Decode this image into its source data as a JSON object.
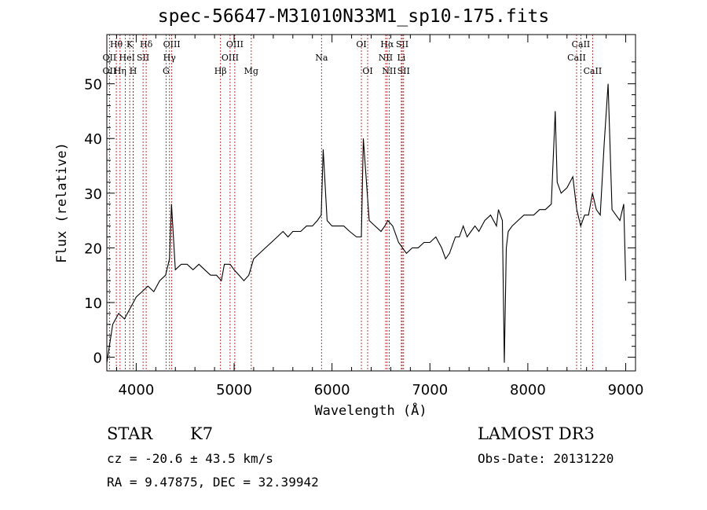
{
  "chart_data": {
    "type": "line",
    "title": "spec-56647-M31010N33M1_sp10-175.fits",
    "xlabel": "Wavelength (Å)",
    "ylabel": "Flux (relative)",
    "xlim": [
      3700,
      9100
    ],
    "ylim": [
      -2.5,
      59
    ],
    "xticks": [
      4000,
      5000,
      6000,
      7000,
      8000,
      9000
    ],
    "yticks": [
      0,
      10,
      20,
      30,
      40,
      50
    ],
    "series": [
      {
        "name": "flux",
        "x": [
          3700,
          3760,
          3820,
          3880,
          3940,
          4000,
          4060,
          4120,
          4180,
          4240,
          4300,
          4340,
          4360,
          4400,
          4460,
          4520,
          4580,
          4640,
          4700,
          4760,
          4820,
          4870,
          4900,
          4960,
          5000,
          5050,
          5100,
          5150,
          5200,
          5260,
          5320,
          5380,
          5440,
          5500,
          5550,
          5600,
          5620,
          5680,
          5740,
          5800,
          5850,
          5890,
          5910,
          5950,
          6000,
          6060,
          6120,
          6180,
          6250,
          6300,
          6320,
          6380,
          6440,
          6500,
          6540,
          6570,
          6620,
          6680,
          6720,
          6760,
          6820,
          6880,
          6940,
          7000,
          7060,
          7120,
          7160,
          7200,
          7260,
          7300,
          7340,
          7380,
          7420,
          7460,
          7500,
          7560,
          7620,
          7680,
          7700,
          7740,
          7760,
          7780,
          7800,
          7840,
          7900,
          7960,
          8000,
          8060,
          8120,
          8180,
          8240,
          8280,
          8300,
          8340,
          8400,
          8460,
          8500,
          8540,
          8580,
          8620,
          8660,
          8700,
          8740,
          8780,
          8820,
          8860,
          8900,
          8940,
          8980,
          9000
        ],
        "values": [
          -1,
          6,
          8,
          7,
          9,
          11,
          12,
          13,
          12,
          14,
          15,
          18,
          28,
          16,
          17,
          17,
          16,
          17,
          16,
          15,
          15,
          14,
          17,
          17,
          16,
          15,
          14,
          15,
          18,
          19,
          20,
          21,
          22,
          23,
          22,
          23,
          23,
          23,
          24,
          24,
          25,
          26,
          38,
          25,
          24,
          24,
          24,
          23,
          22,
          22,
          40,
          25,
          24,
          23,
          24,
          25,
          24,
          21,
          20,
          19,
          20,
          20,
          21,
          21,
          22,
          20,
          18,
          19,
          22,
          22,
          24,
          22,
          23,
          24,
          23,
          25,
          26,
          24,
          27,
          25,
          -1,
          20,
          23,
          24,
          25,
          26,
          26,
          26,
          27,
          27,
          28,
          45,
          32,
          30,
          31,
          33,
          27,
          24,
          26,
          26,
          30,
          27,
          26,
          39,
          50,
          27,
          26,
          25,
          28,
          14
        ]
      }
    ],
    "spectral_lines": [
      {
        "label": "Hθ",
        "row": 1,
        "wl": 3797
      },
      {
        "label": "K",
        "row": 1,
        "wl": 3934
      },
      {
        "label": "Hδ",
        "row": 1,
        "wl": 4102
      },
      {
        "label": "OIII",
        "row": 1,
        "wl": 4363
      },
      {
        "label": "OIII",
        "row": 1,
        "wl": 5007
      },
      {
        "label": "OI",
        "row": 1,
        "wl": 6300
      },
      {
        "label": "Hα",
        "row": 1,
        "wl": 6563
      },
      {
        "label": "SII",
        "row": 1,
        "wl": 6717
      },
      {
        "label": "CaII",
        "row": 1,
        "wl": 8542
      },
      {
        "label": "OII",
        "row": 2,
        "wl": 3727
      },
      {
        "label": "He",
        "row": 2,
        "wl": 3889
      },
      {
        "label": "I",
        "row": 2,
        "wl": 3970
      },
      {
        "label": "SII",
        "row": 2,
        "wl": 4070
      },
      {
        "label": "Hγ",
        "row": 2,
        "wl": 4340
      },
      {
        "label": "OIII",
        "row": 2,
        "wl": 4959
      },
      {
        "label": "Na",
        "row": 2,
        "wl": 5893
      },
      {
        "label": "NII",
        "row": 2,
        "wl": 6548
      },
      {
        "label": "Li",
        "row": 2,
        "wl": 6708
      },
      {
        "label": "CaII",
        "row": 2,
        "wl": 8498
      },
      {
        "label": "OII",
        "row": 3,
        "wl": 3727
      },
      {
        "label": "Hη",
        "row": 3,
        "wl": 3835
      },
      {
        "label": "H",
        "row": 3,
        "wl": 3969
      },
      {
        "label": "G",
        "row": 3,
        "wl": 4305
      },
      {
        "label": "Hβ",
        "row": 3,
        "wl": 4861
      },
      {
        "label": "Mg",
        "row": 3,
        "wl": 5175
      },
      {
        "label": "OI",
        "row": 3,
        "wl": 6364
      },
      {
        "label": "NII",
        "row": 3,
        "wl": 6584
      },
      {
        "label": "SII",
        "row": 3,
        "wl": 6731
      },
      {
        "label": "CaII",
        "row": 3,
        "wl": 8662
      }
    ],
    "line_color": "#b22222"
  },
  "info": {
    "object_type": "STAR",
    "subclass": "K7",
    "survey": "LAMOST DR3",
    "cz": "cz = -20.6 ± 43.5 km/s",
    "obs_date": "Obs-Date: 20131220",
    "coords": "RA =   9.47875, DEC =  32.39942"
  }
}
